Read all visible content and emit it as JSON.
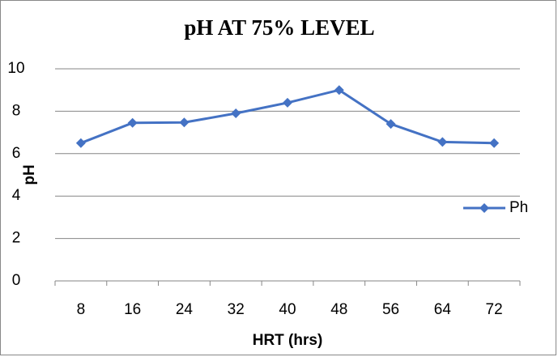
{
  "chart_data": {
    "type": "line",
    "title": "pH AT 75% LEVEL",
    "x_label": "HRT (hrs)",
    "y_label": "pH",
    "categories": [
      "8",
      "16",
      "24",
      "32",
      "40",
      "48",
      "56",
      "64",
      "72"
    ],
    "series": [
      {
        "name": "Ph",
        "color": "#4472c4",
        "values": [
          6.5,
          7.45,
          7.47,
          7.9,
          8.4,
          9.0,
          7.4,
          6.55,
          6.5
        ]
      }
    ],
    "ylim": [
      0,
      10
    ],
    "yticks": [
      0,
      2,
      4,
      6,
      8,
      10
    ],
    "grid": true,
    "legend": "right"
  }
}
